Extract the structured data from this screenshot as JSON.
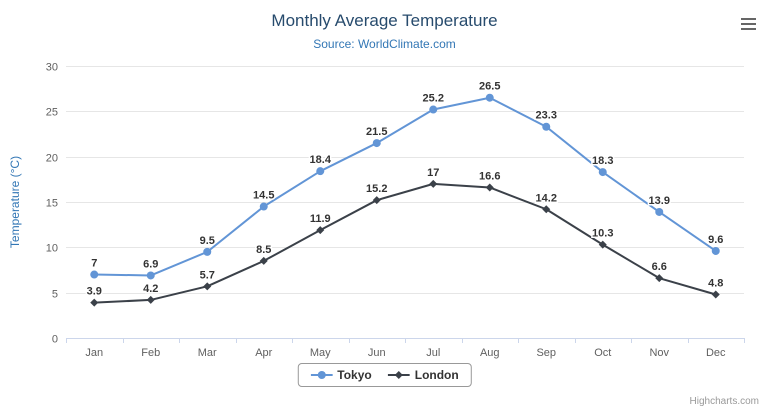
{
  "chart": {
    "credits": "Highcharts.com",
    "colors": {
      "title": "#274b6d",
      "subtitle": "#3377b5",
      "axis_title": "#3377b5",
      "axis_labels": "#606060",
      "grid": "#e6e6e6",
      "axis_line": "#ccd6eb",
      "data_label": "#333333"
    }
  },
  "chart_data": {
    "type": "line",
    "title": "Monthly Average Temperature",
    "subtitle": "Source: WorldClimate.com",
    "categories": [
      "Jan",
      "Feb",
      "Mar",
      "Apr",
      "May",
      "Jun",
      "Jul",
      "Aug",
      "Sep",
      "Oct",
      "Nov",
      "Dec"
    ],
    "series": [
      {
        "name": "Tokyo",
        "color": "#6295d6",
        "marker": "circle",
        "values": [
          7,
          6.9,
          9.5,
          14.5,
          18.4,
          21.5,
          25.2,
          26.5,
          23.3,
          18.3,
          13.9,
          9.6
        ]
      },
      {
        "name": "London",
        "color": "#3b4149",
        "marker": "diamond",
        "values": [
          3.9,
          4.2,
          5.7,
          8.5,
          11.9,
          15.2,
          17,
          16.6,
          14.2,
          10.3,
          6.6,
          4.8
        ]
      }
    ],
    "xlabel": "",
    "ylabel": "Temperature (°C)",
    "ylim": [
      0,
      30
    ],
    "ytick_interval": 5,
    "grid": true,
    "legend_position": "bottom"
  }
}
